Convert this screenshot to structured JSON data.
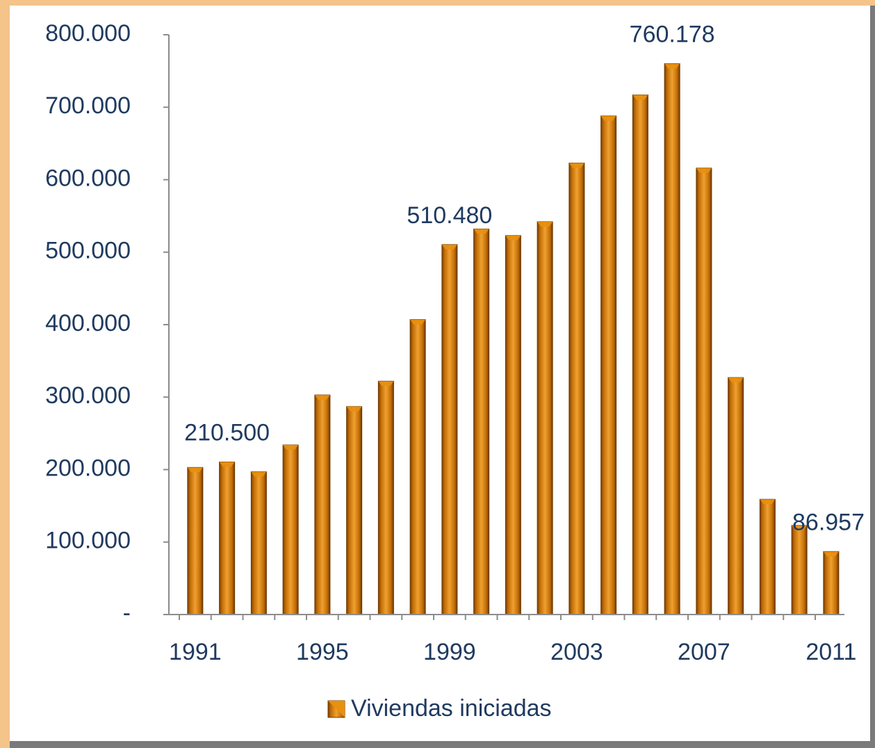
{
  "chart_data": {
    "type": "bar",
    "categories": [
      "1991",
      null,
      null,
      null,
      "1995",
      null,
      null,
      null,
      "1999",
      null,
      null,
      null,
      "2003",
      null,
      null,
      null,
      "2007",
      null,
      null,
      null,
      "2011"
    ],
    "series": [
      {
        "name": "Viviendas iniciadas",
        "color": "#e8900f",
        "values": [
          203000,
          210500,
          197000,
          234000,
          303000,
          287000,
          322000,
          407000,
          510480,
          532000,
          523000,
          542000,
          623000,
          688000,
          717000,
          760178,
          616000,
          327000,
          159000,
          123000,
          86957
        ],
        "value_labels": [
          null,
          "210.500",
          null,
          null,
          null,
          null,
          null,
          null,
          "510.480",
          null,
          null,
          null,
          null,
          null,
          null,
          "760.178",
          null,
          null,
          null,
          null,
          "86.957"
        ]
      }
    ],
    "ylim": [
      0,
      800000
    ],
    "yticks": [
      {
        "value": 0,
        "label": "-"
      },
      {
        "value": 100000,
        "label": "100.000"
      },
      {
        "value": 200000,
        "label": "200.000"
      },
      {
        "value": 300000,
        "label": "300.000"
      },
      {
        "value": 400000,
        "label": "400.000"
      },
      {
        "value": 500000,
        "label": "500.000"
      },
      {
        "value": 600000,
        "label": "600.000"
      },
      {
        "value": 700000,
        "label": "700.000"
      },
      {
        "value": 800000,
        "label": "800.000"
      }
    ],
    "legend": "bottom"
  }
}
